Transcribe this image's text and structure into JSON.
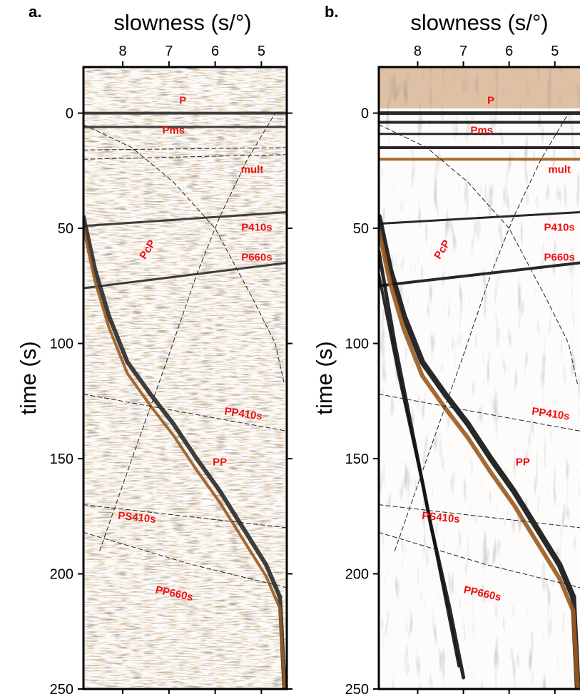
{
  "panels": [
    {
      "letter": "a.",
      "chart_data": {
        "type": "heatmap",
        "title": "",
        "xlabel": "slowness (s/°)",
        "ylabel": "time (s)",
        "xlim": [
          8.85,
          4.45
        ],
        "ylim": [
          250,
          -20
        ],
        "x_ticks": [
          "8",
          "7",
          "6",
          "5"
        ],
        "y_ticks": [
          "0",
          "50",
          "100",
          "150",
          "200",
          "250"
        ],
        "colormap": {
          "negative": "#2a2a2a",
          "zero": "#ffffff",
          "positive": "#9b5a1e"
        },
        "phase_labels": [
          {
            "label": "P",
            "x": 6.7,
            "y": -4
          },
          {
            "label": "Pms",
            "x": 6.9,
            "y": 9
          },
          {
            "label": "mult",
            "x": 5.2,
            "y": 26
          },
          {
            "label": "P410s",
            "x": 5.1,
            "y": 51
          },
          {
            "label": "P660s",
            "x": 5.1,
            "y": 64
          },
          {
            "label": "PcP",
            "x": 7.4,
            "y": 60,
            "rotate": -58
          },
          {
            "label": "PP410s",
            "x": 5.4,
            "y": 132,
            "rotate": 8
          },
          {
            "label": "PP",
            "x": 5.9,
            "y": 153
          },
          {
            "label": "PS410s",
            "x": 7.7,
            "y": 177,
            "rotate": 6
          },
          {
            "label": "PP660s",
            "x": 6.9,
            "y": 210,
            "rotate": 12
          }
        ],
        "series": [
          {
            "label": "P",
            "style": "solid-black",
            "width": 4,
            "x": [
              8.85,
              4.45
            ],
            "y": [
              0,
              0
            ]
          },
          {
            "label": "Pms",
            "style": "solid-black",
            "width": 3,
            "x": [
              8.85,
              4.45
            ],
            "y": [
              6,
              6
            ]
          },
          {
            "label": "P410s",
            "style": "solid-black",
            "width": 3,
            "x": [
              8.85,
              4.45
            ],
            "y": [
              49,
              43
            ]
          },
          {
            "label": "P660s",
            "style": "solid-black",
            "width": 3,
            "x": [
              8.85,
              4.45
            ],
            "y": [
              76,
              65
            ]
          },
          {
            "label": "PP",
            "style": "solid-black",
            "width": 6,
            "x": [
              8.85,
              8.6,
              8.3,
              7.9,
              7.4,
              6.9,
              6.4,
              5.9,
              5.4,
              4.9,
              4.6,
              4.5
            ],
            "y": [
              45,
              68,
              88,
              108,
              122,
              135,
              150,
              164,
              180,
              196,
              210,
              250
            ]
          },
          {
            "label": "PP-brown",
            "style": "solid-brown",
            "width": 4,
            "x": [
              8.85,
              8.6,
              8.3,
              7.9,
              7.4,
              6.9,
              6.4,
              5.9,
              5.4,
              4.9,
              4.6,
              4.5
            ],
            "y": [
              50,
              73,
              93,
              113,
              127,
              140,
              155,
              169,
              185,
              201,
              215,
              250
            ]
          },
          {
            "label": "PcP",
            "style": "dashed",
            "width": 1,
            "x": [
              8.5,
              7.8,
              7.0,
              6.4,
              5.9,
              5.3,
              4.7
            ],
            "y": [
              190,
              150,
              105,
              70,
              45,
              20,
              0
            ]
          },
          {
            "label": "pP-dashed",
            "style": "dashed",
            "width": 1,
            "x": [
              8.85,
              7.8,
              6.9,
              6.0,
              5.2,
              4.7,
              4.5
            ],
            "y": [
              5,
              15,
              30,
              50,
              80,
              100,
              118
            ]
          },
          {
            "label": "mult-dashed",
            "style": "dashed",
            "width": 1,
            "x": [
              8.85,
              4.45
            ],
            "y": [
              16,
              15
            ]
          },
          {
            "label": "mult2-dashed",
            "style": "dashed",
            "width": 1,
            "x": [
              8.85,
              4.45
            ],
            "y": [
              20,
              18
            ]
          },
          {
            "label": "PP410s",
            "style": "dashed",
            "width": 1,
            "x": [
              8.85,
              4.45
            ],
            "y": [
              122,
              138
            ]
          },
          {
            "label": "PS410s",
            "style": "dashed",
            "width": 1,
            "x": [
              8.85,
              4.45
            ],
            "y": [
              170,
              180
            ]
          },
          {
            "label": "PP660s",
            "style": "dashed",
            "width": 1,
            "x": [
              8.85,
              6.5,
              4.45
            ],
            "y": [
              182,
              196,
              206
            ]
          }
        ]
      }
    },
    {
      "letter": "b.",
      "chart_data": {
        "type": "heatmap",
        "title": "",
        "xlabel": "slowness (s/°)",
        "ylabel": "time (s)",
        "xlim": [
          8.85,
          4.45
        ],
        "ylim": [
          250,
          -20
        ],
        "x_ticks": [
          "8",
          "7",
          "6",
          "5"
        ],
        "y_ticks": [
          "0",
          "50",
          "100",
          "150",
          "200",
          "250"
        ],
        "colormap": {
          "negative": "#111111",
          "zero": "#ffffff",
          "positive": "#9b5a1e"
        },
        "phase_labels": [
          {
            "label": "P",
            "x": 6.4,
            "y": -4
          },
          {
            "label": "Pms",
            "x": 6.6,
            "y": 9
          },
          {
            "label": "mult",
            "x": 4.9,
            "y": 26
          },
          {
            "label": "P410s",
            "x": 4.9,
            "y": 51
          },
          {
            "label": "P660s",
            "x": 4.9,
            "y": 64
          },
          {
            "label": "PcP",
            "x": 7.4,
            "y": 60,
            "rotate": -58
          },
          {
            "label": "PP410s",
            "x": 5.1,
            "y": 132,
            "rotate": 8
          },
          {
            "label": "PP",
            "x": 5.7,
            "y": 153
          },
          {
            "label": "PS410s",
            "x": 7.5,
            "y": 177,
            "rotate": 6
          },
          {
            "label": "PP660s",
            "x": 6.6,
            "y": 210,
            "rotate": 12
          }
        ],
        "series": [
          {
            "label": "P",
            "style": "solid-black",
            "width": 5,
            "x": [
              8.85,
              4.45
            ],
            "y": [
              0,
              0
            ]
          },
          {
            "label": "P2",
            "style": "solid-black",
            "width": 4,
            "x": [
              8.85,
              4.45
            ],
            "y": [
              4,
              4
            ]
          },
          {
            "label": "Pms",
            "style": "solid-black",
            "width": 3,
            "x": [
              8.85,
              4.45
            ],
            "y": [
              9,
              9
            ]
          },
          {
            "label": "mult-a",
            "style": "solid-black",
            "width": 4,
            "x": [
              8.85,
              4.45
            ],
            "y": [
              15,
              15
            ]
          },
          {
            "label": "mult-b",
            "style": "solid-brown",
            "width": 4,
            "x": [
              8.85,
              4.45
            ],
            "y": [
              20,
              20
            ]
          },
          {
            "label": "P410s",
            "style": "solid-black",
            "width": 3,
            "x": [
              8.85,
              4.45
            ],
            "y": [
              48,
              43
            ]
          },
          {
            "label": "P660s",
            "style": "solid-black",
            "width": 4,
            "x": [
              8.85,
              4.45
            ],
            "y": [
              75,
              65
            ]
          },
          {
            "label": "PP",
            "style": "solid-black",
            "width": 8,
            "x": [
              8.85,
              8.6,
              8.3,
              7.9,
              7.4,
              6.9,
              6.4,
              5.9,
              5.4,
              4.9,
              4.6,
              4.5
            ],
            "y": [
              45,
              68,
              88,
              108,
              122,
              135,
              150,
              164,
              180,
              196,
              210,
              250
            ]
          },
          {
            "label": "PP-brown",
            "style": "solid-brown",
            "width": 6,
            "x": [
              8.85,
              8.6,
              8.3,
              7.9,
              7.4,
              6.9,
              6.4,
              5.9,
              5.4,
              4.9,
              4.6,
              4.5
            ],
            "y": [
              51,
              74,
              94,
              114,
              128,
              141,
              156,
              170,
              186,
              202,
              216,
              250
            ]
          },
          {
            "label": "steep-1",
            "style": "solid-black",
            "width": 5,
            "x": [
              8.85,
              8.5,
              8.1,
              7.7,
              7.3,
              7.0
            ],
            "y": [
              60,
              100,
              140,
              180,
              215,
              245
            ]
          },
          {
            "label": "steep-2",
            "style": "solid-black",
            "width": 4,
            "x": [
              8.85,
              8.4,
              7.9,
              7.5,
              7.1
            ],
            "y": [
              70,
              115,
              160,
              200,
              240
            ]
          },
          {
            "label": "PcP",
            "style": "dashed",
            "width": 1,
            "x": [
              8.5,
              7.8,
              7.0,
              6.4,
              5.9,
              5.3,
              4.7
            ],
            "y": [
              190,
              150,
              105,
              70,
              45,
              20,
              0
            ]
          },
          {
            "label": "pP-dashed",
            "style": "dashed",
            "width": 1,
            "x": [
              8.85,
              7.8,
              6.9,
              6.0,
              5.2,
              4.7,
              4.5
            ],
            "y": [
              5,
              15,
              30,
              50,
              80,
              100,
              118
            ]
          },
          {
            "label": "PP410s",
            "style": "dashed",
            "width": 1,
            "x": [
              8.85,
              4.45
            ],
            "y": [
              122,
              138
            ]
          },
          {
            "label": "PS410s",
            "style": "dashed",
            "width": 1,
            "x": [
              8.85,
              4.45
            ],
            "y": [
              170,
              180
            ]
          },
          {
            "label": "PP660s",
            "style": "dashed",
            "width": 1,
            "x": [
              8.85,
              6.5,
              4.45
            ],
            "y": [
              182,
              196,
              206
            ]
          }
        ]
      }
    }
  ]
}
